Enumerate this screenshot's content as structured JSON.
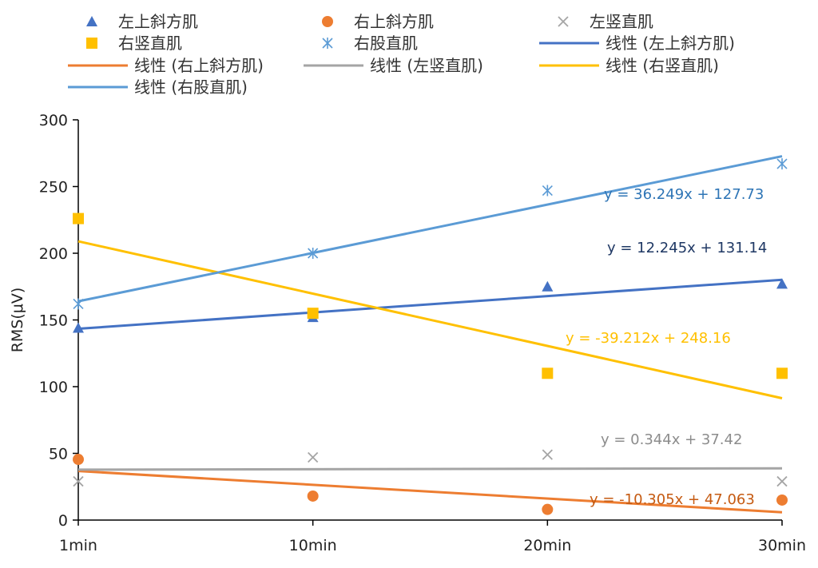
{
  "chart_data": {
    "type": "scatter",
    "title": "",
    "xlabel": "",
    "ylabel": "RMS(μV)",
    "categories": [
      "1min",
      "10min",
      "20min",
      "30min"
    ],
    "ylim": [
      0,
      300
    ],
    "yticks": [
      0,
      50,
      100,
      150,
      200,
      250,
      300
    ],
    "grid": false,
    "legend_position": "top",
    "series": [
      {
        "name": "左上斜方肌",
        "marker": "triangle",
        "color": "#4472C4",
        "values": [
          144,
          152,
          175,
          177
        ],
        "trend": {
          "name": "线性 (左上斜方肌)",
          "slope": 12.245,
          "intercept": 131.14,
          "equation": "y = 12.245x + 131.14",
          "label_color": "#1F3864"
        }
      },
      {
        "name": "右上斜方肌",
        "marker": "circle",
        "color": "#ED7D31",
        "values": [
          45.5,
          18,
          8,
          15
        ],
        "trend": {
          "name": "线性 (右上斜方肌)",
          "slope": -10.305,
          "intercept": 47.063,
          "equation": "y = -10.305x + 47.063",
          "label_color": "#C55A11"
        }
      },
      {
        "name": "左竖直肌",
        "marker": "x",
        "color": "#A5A5A5",
        "values": [
          29,
          47,
          49,
          29
        ],
        "trend": {
          "name": "线性 (左竖直肌)",
          "slope": 0.344,
          "intercept": 37.42,
          "equation": "y = 0.344x + 37.42",
          "label_color": "#8C8C8C"
        }
      },
      {
        "name": "右竖直肌",
        "marker": "square",
        "color": "#FFC000",
        "values": [
          226,
          155,
          110,
          110
        ],
        "trend": {
          "name": "线性 (右竖直肌)",
          "slope": -39.212,
          "intercept": 248.16,
          "equation": "y = -39.212x + 248.16",
          "label_color": "#FFC000"
        }
      },
      {
        "name": "右股直肌",
        "marker": "asterisk",
        "color": "#5B9BD5",
        "values": [
          162,
          200,
          247,
          267
        ],
        "trend": {
          "name": "线性 (右股直肌)",
          "slope": 36.249,
          "intercept": 127.73,
          "equation": "y = 36.249x + 127.73",
          "label_color": "#2E75B6"
        }
      }
    ]
  }
}
